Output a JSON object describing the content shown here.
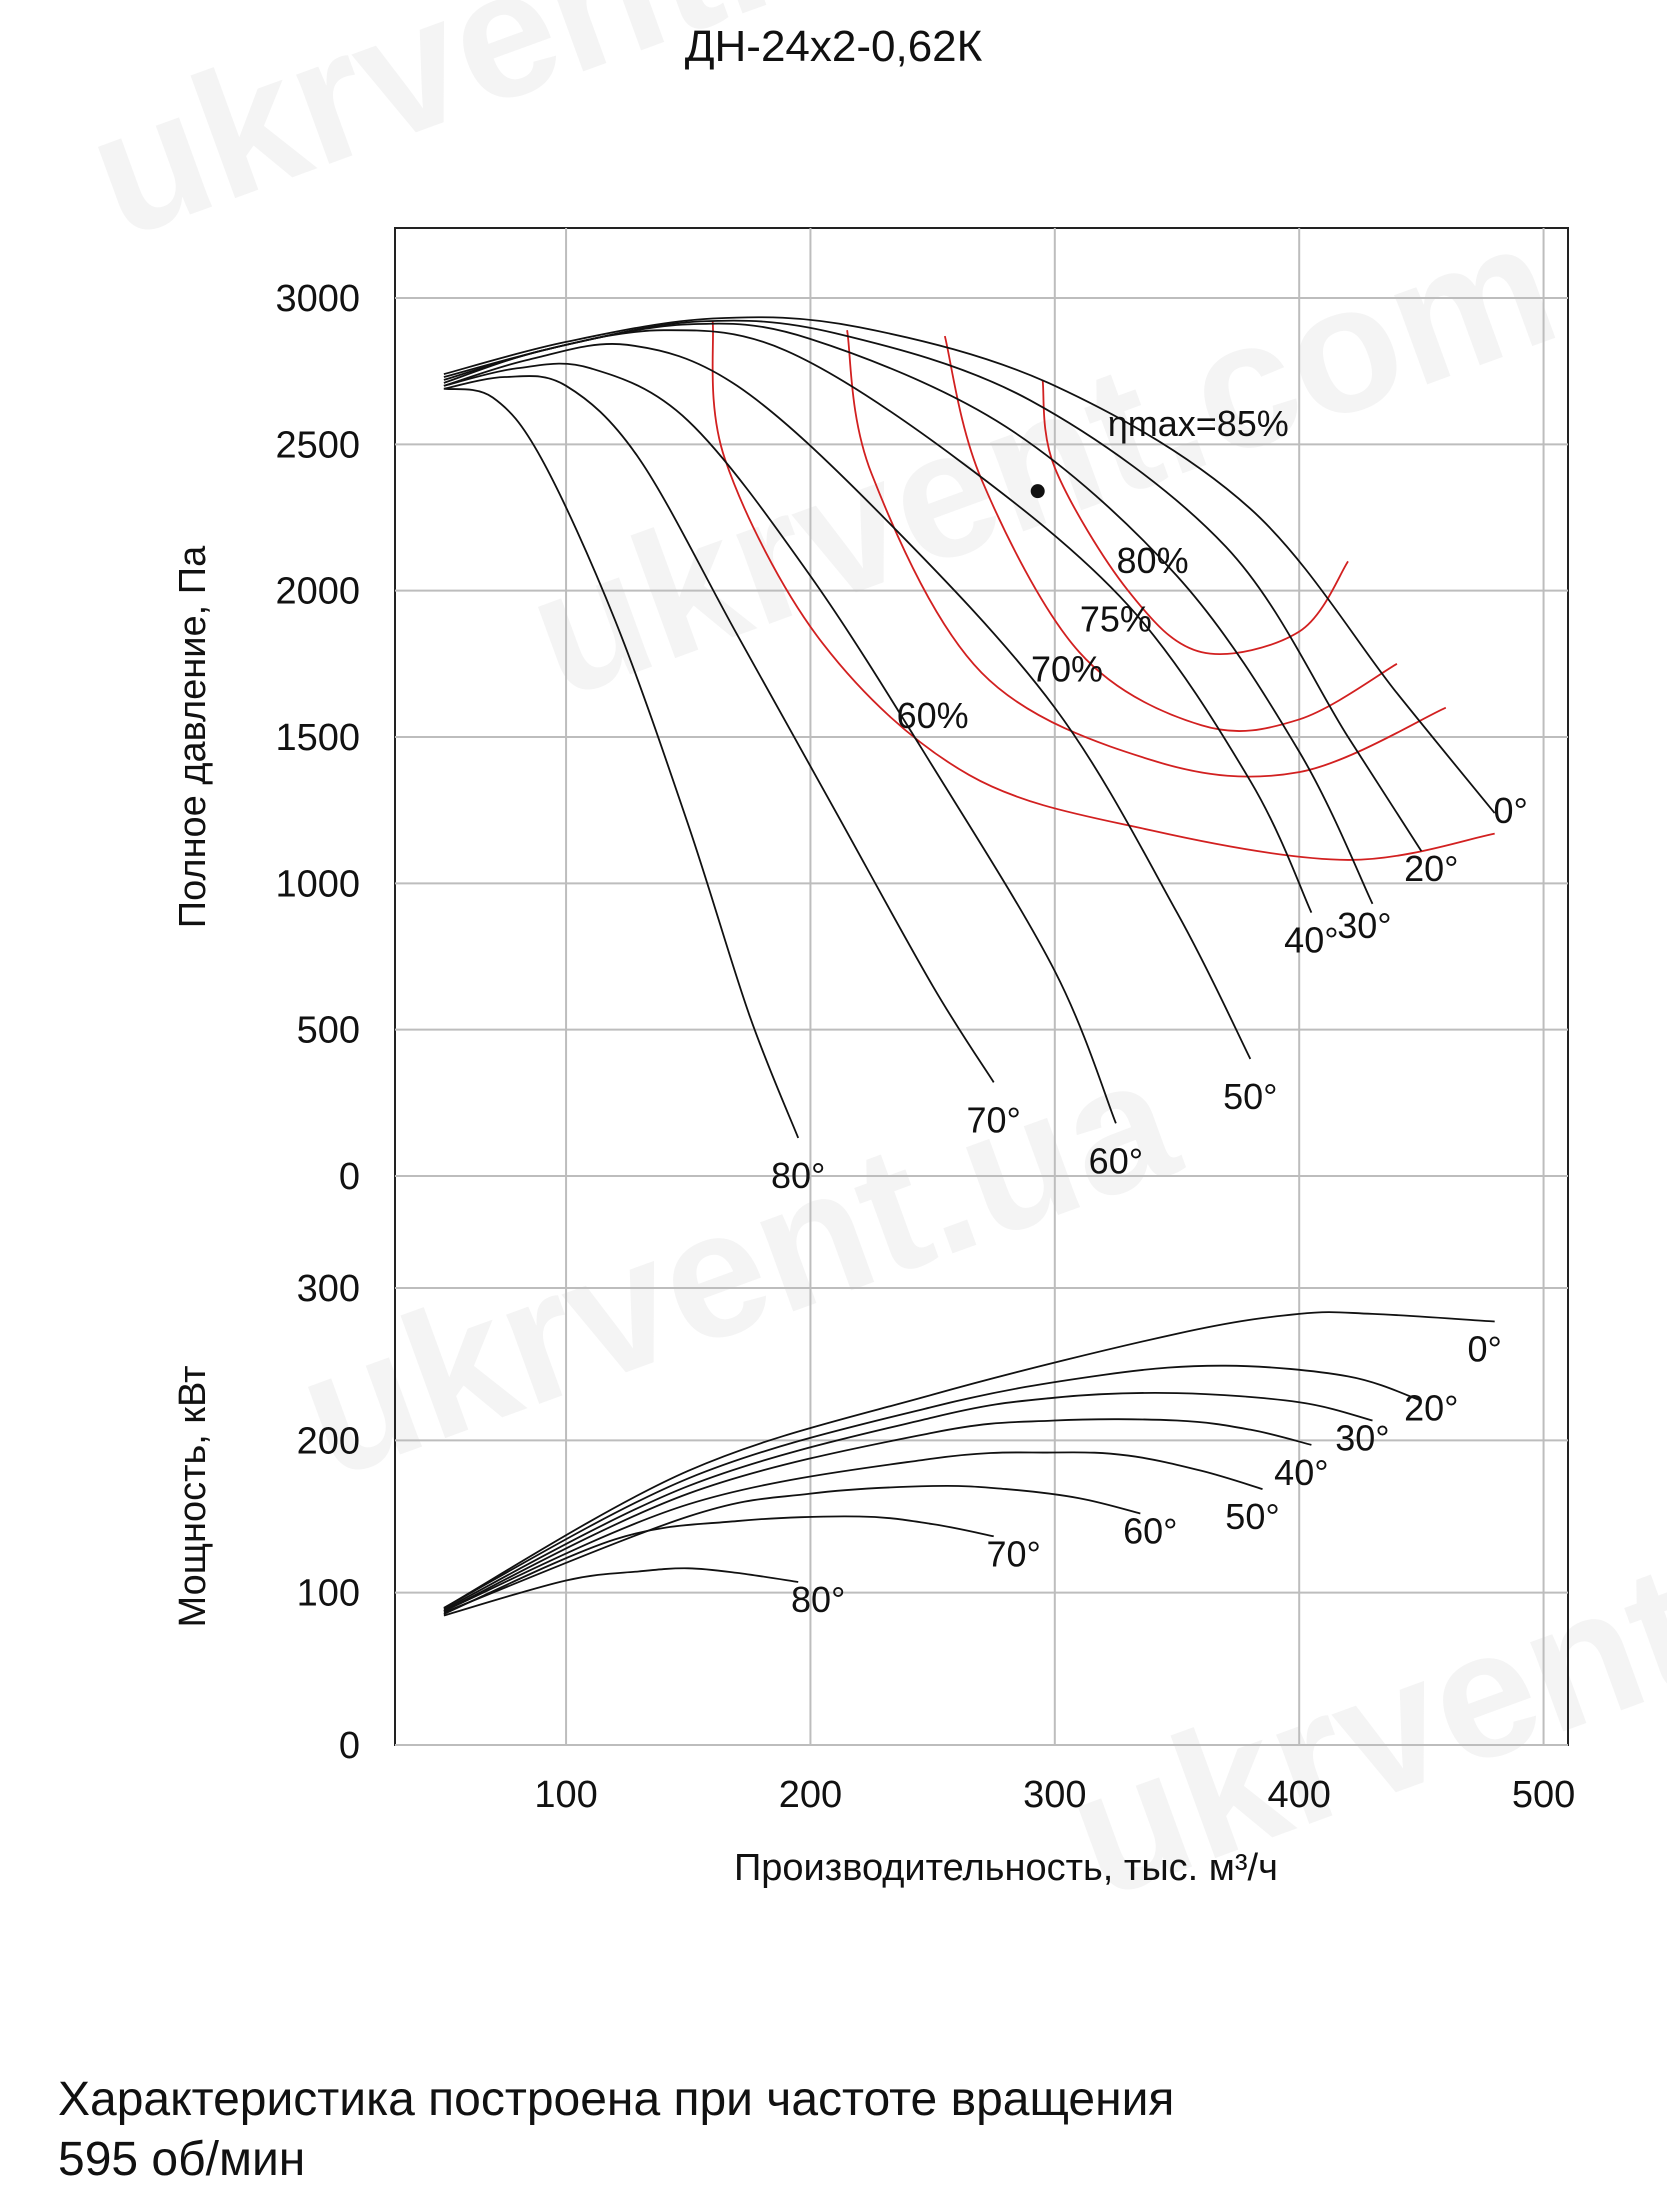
{
  "title": "ДН-24х2-0,62К",
  "caption_line1": "Характеристика построена при частоте вращения",
  "caption_line2": "595 об/мин",
  "watermark": "ukrvent.ua",
  "watermark2": "ukrvent.com",
  "colors": {
    "curve": "#111111",
    "efficiency": "#d22020",
    "grid": "#bdbdbd"
  },
  "chart_data": [
    {
      "type": "line",
      "title": "",
      "xlabel": "Производительность, тыс. м³/ч",
      "ylabel": "Полное давление, Па",
      "xlim": [
        30,
        510
      ],
      "ylim": [
        -100,
        3200
      ],
      "x_ticks": [
        "100",
        "200",
        "300",
        "400",
        "500"
      ],
      "y_ticks": [
        "0",
        "500",
        "1000",
        "1500",
        "2000",
        "2500",
        "3000"
      ],
      "grid": true,
      "max_point": {
        "label": "ηmax=85%",
        "x": 293,
        "y": 2340
      },
      "series": [
        {
          "name": "0°",
          "points": [
            [
              50,
              2740
            ],
            [
              100,
              2850
            ],
            [
              160,
              2930
            ],
            [
              220,
              2900
            ],
            [
              300,
              2700
            ],
            [
              380,
              2280
            ],
            [
              440,
              1650
            ],
            [
              480,
              1240
            ]
          ]
        },
        {
          "name": "20°",
          "points": [
            [
              50,
              2730
            ],
            [
              100,
              2840
            ],
            [
              155,
              2920
            ],
            [
              210,
              2880
            ],
            [
              290,
              2650
            ],
            [
              370,
              2150
            ],
            [
              420,
              1500
            ],
            [
              450,
              1110
            ]
          ]
        },
        {
          "name": "30°",
          "points": [
            [
              50,
              2720
            ],
            [
              95,
              2830
            ],
            [
              150,
              2910
            ],
            [
              200,
              2860
            ],
            [
              280,
              2560
            ],
            [
              350,
              2050
            ],
            [
              400,
              1450
            ],
            [
              430,
              930
            ]
          ]
        },
        {
          "name": "40°",
          "points": [
            [
              50,
              2710
            ],
            [
              90,
              2820
            ],
            [
              140,
              2890
            ],
            [
              190,
              2820
            ],
            [
              260,
              2450
            ],
            [
              330,
              1950
            ],
            [
              380,
              1350
            ],
            [
              405,
              900
            ]
          ]
        },
        {
          "name": "50°",
          "points": [
            [
              50,
              2700
            ],
            [
              85,
              2790
            ],
            [
              125,
              2840
            ],
            [
              170,
              2700
            ],
            [
              230,
              2250
            ],
            [
              300,
              1600
            ],
            [
              350,
              900
            ],
            [
              380,
              400
            ]
          ]
        },
        {
          "name": "60°",
          "points": [
            [
              50,
              2700
            ],
            [
              80,
              2760
            ],
            [
              110,
              2760
            ],
            [
              150,
              2580
            ],
            [
              200,
              2050
            ],
            [
              250,
              1400
            ],
            [
              300,
              700
            ],
            [
              325,
              180
            ]
          ]
        },
        {
          "name": "70°",
          "points": [
            [
              50,
              2690
            ],
            [
              75,
              2730
            ],
            [
              100,
              2700
            ],
            [
              130,
              2450
            ],
            [
              170,
              1850
            ],
            [
              210,
              1250
            ],
            [
              250,
              650
            ],
            [
              275,
              320
            ]
          ]
        },
        {
          "name": "80°",
          "points": [
            [
              50,
              2690
            ],
            [
              70,
              2660
            ],
            [
              90,
              2450
            ],
            [
              120,
              1900
            ],
            [
              150,
              1200
            ],
            [
              175,
              550
            ],
            [
              195,
              130
            ]
          ]
        }
      ],
      "efficiency_curves": [
        {
          "label": "80%",
          "points": [
            [
              295,
              2720
            ],
            [
              300,
              2420
            ],
            [
              330,
              2000
            ],
            [
              360,
              1790
            ],
            [
              400,
              1860
            ],
            [
              420,
              2100
            ]
          ]
        },
        {
          "label": "75%",
          "points": [
            [
              255,
              2870
            ],
            [
              270,
              2380
            ],
            [
              310,
              1790
            ],
            [
              360,
              1540
            ],
            [
              400,
              1560
            ],
            [
              440,
              1750
            ]
          ]
        },
        {
          "label": "70%",
          "points": [
            [
              215,
              2890
            ],
            [
              225,
              2400
            ],
            [
              270,
              1720
            ],
            [
              340,
              1420
            ],
            [
              400,
              1380
            ],
            [
              460,
              1600
            ]
          ]
        },
        {
          "label": "60%",
          "points": [
            [
              160,
              2920
            ],
            [
              165,
              2450
            ],
            [
              205,
              1820
            ],
            [
              265,
              1370
            ],
            [
              340,
              1180
            ],
            [
              420,
              1080
            ],
            [
              480,
              1170
            ]
          ]
        }
      ]
    },
    {
      "type": "line",
      "title": "",
      "xlabel": "Производительность, тыс. м³/ч",
      "ylabel": "Мощность, кВт",
      "xlim": [
        30,
        510
      ],
      "ylim": [
        0,
        310
      ],
      "y_ticks": [
        "0",
        "100",
        "200",
        "300"
      ],
      "grid": true,
      "series": [
        {
          "name": "0°",
          "points": [
            [
              50,
              90
            ],
            [
              150,
              180
            ],
            [
              250,
              230
            ],
            [
              350,
              270
            ],
            [
              400,
              283
            ],
            [
              430,
              283
            ],
            [
              480,
              278
            ]
          ]
        },
        {
          "name": "20°",
          "points": [
            [
              50,
              90
            ],
            [
              150,
              175
            ],
            [
              250,
              222
            ],
            [
              320,
              243
            ],
            [
              370,
              249
            ],
            [
              420,
              242
            ],
            [
              450,
              226
            ]
          ]
        },
        {
          "name": "30°",
          "points": [
            [
              50,
              89
            ],
            [
              150,
              170
            ],
            [
              250,
              215
            ],
            [
              300,
              228
            ],
            [
              350,
              231
            ],
            [
              400,
              225
            ],
            [
              430,
              213
            ]
          ]
        },
        {
          "name": "40°",
          "points": [
            [
              50,
              88
            ],
            [
              150,
              165
            ],
            [
              250,
              205
            ],
            [
              300,
              213
            ],
            [
              350,
              213
            ],
            [
              380,
              207
            ],
            [
              405,
              197
            ]
          ]
        },
        {
          "name": "50°",
          "points": [
            [
              50,
              88
            ],
            [
              150,
              158
            ],
            [
              250,
              188
            ],
            [
              300,
              192
            ],
            [
              330,
              190
            ],
            [
              360,
              180
            ],
            [
              385,
              168
            ]
          ]
        },
        {
          "name": "60°",
          "points": [
            [
              50,
              87
            ],
            [
              150,
              150
            ],
            [
              200,
              165
            ],
            [
              250,
              170
            ],
            [
              280,
              168
            ],
            [
              310,
              162
            ],
            [
              335,
              152
            ]
          ]
        },
        {
          "name": "70°",
          "points": [
            [
              50,
              86
            ],
            [
              120,
              135
            ],
            [
              170,
              147
            ],
            [
              220,
              150
            ],
            [
              250,
              145
            ],
            [
              275,
              137
            ]
          ]
        },
        {
          "name": "80°",
          "points": [
            [
              50,
              85
            ],
            [
              100,
              108
            ],
            [
              130,
              114
            ],
            [
              150,
              116
            ],
            [
              170,
              113
            ],
            [
              195,
              107
            ]
          ]
        }
      ]
    }
  ]
}
